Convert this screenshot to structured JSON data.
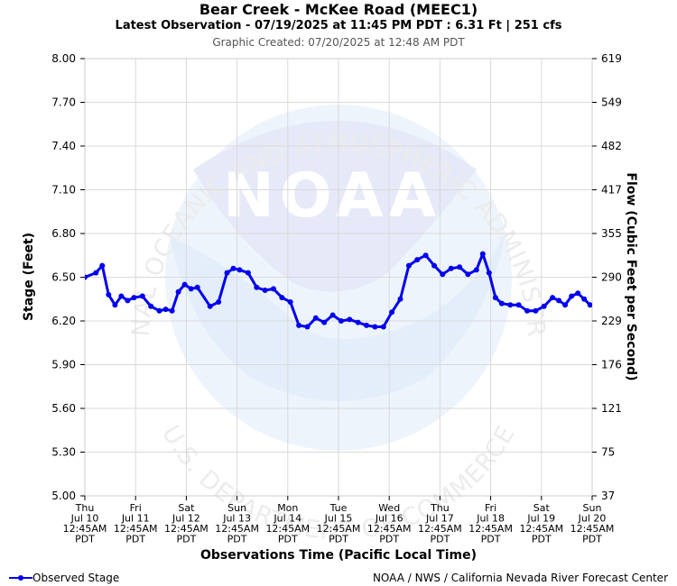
{
  "header": {
    "title": "Bear Creek - McKee Road (MEEC1)",
    "latest": "Latest Observation - 07/19/2025 at 11:45 PM PDT : 6.31 Ft | 251 cfs",
    "created": "Graphic Created: 07/20/2025 at 12:48 AM PDT"
  },
  "watermark": {
    "logo_text": "NOAA",
    "ring_top": "NATIONAL OCEANIC AND ATMOSPHERIC ADMINISTRATION",
    "ring_bottom": "U.S. DEPARTMENT OF COMMERCE"
  },
  "footer": {
    "legend_label": "Observed Stage",
    "credit": "NOAA / NWS / California Nevada River Forecast Center"
  },
  "colors": {
    "series": "#0000ee",
    "grid": "#d9d9d9",
    "watermark_blue": "#e9ecfa",
    "watermark_light": "#eef4fc"
  },
  "chart_data": {
    "type": "line",
    "ylabel": "Stage (Feet)",
    "y2label": "Flow (Cubic Feet per Second)",
    "xlabel": "Observations Time (Pacific Local Time)",
    "ylim": [
      5.0,
      8.0
    ],
    "yticks": [
      "8.00",
      "7.70",
      "7.40",
      "7.10",
      "6.80",
      "6.50",
      "6.20",
      "5.90",
      "5.60",
      "5.30",
      "5.00"
    ],
    "y2ticks": [
      "619",
      "549",
      "482",
      "417",
      "355",
      "290",
      "229",
      "176",
      "121",
      "75",
      "37"
    ],
    "xticks": [
      [
        "Thu",
        "Jul 10",
        "12:45AM",
        "PDT"
      ],
      [
        "Fri",
        "Jul 11",
        "12:45AM",
        "PDT"
      ],
      [
        "Sat",
        "Jul 12",
        "12:45AM",
        "PDT"
      ],
      [
        "Sun",
        "Jul 13",
        "12:45AM",
        "PDT"
      ],
      [
        "Mon",
        "Jul 14",
        "12:45AM",
        "PDT"
      ],
      [
        "Tue",
        "Jul 15",
        "12:45AM",
        "PDT"
      ],
      [
        "Wed",
        "Jul 16",
        "12:45AM",
        "PDT"
      ],
      [
        "Thu",
        "Jul 17",
        "12:45AM",
        "PDT"
      ],
      [
        "Fri",
        "Jul 18",
        "12:45AM",
        "PDT"
      ],
      [
        "Sat",
        "Jul 19",
        "12:45AM",
        "PDT"
      ],
      [
        "Sun",
        "Jul 20",
        "12:45AM",
        "PDT"
      ]
    ],
    "grid": true,
    "series": [
      {
        "name": "Observed Stage",
        "x": [
          "2025-07-10 00:45",
          "2025-07-10 06:00",
          "2025-07-10 09:00",
          "2025-07-10 12:00",
          "2025-07-10 15:00",
          "2025-07-10 18:00",
          "2025-07-10 21:00",
          "2025-07-11 00:00",
          "2025-07-11 04:00",
          "2025-07-11 08:00",
          "2025-07-11 12:00",
          "2025-07-11 15:00",
          "2025-07-11 18:00",
          "2025-07-11 21:00",
          "2025-07-12 00:00",
          "2025-07-12 03:00",
          "2025-07-12 06:00",
          "2025-07-12 12:00",
          "2025-07-12 16:00",
          "2025-07-12 20:00",
          "2025-07-12 23:00",
          "2025-07-13 02:00",
          "2025-07-13 06:00",
          "2025-07-13 10:00",
          "2025-07-13 14:00",
          "2025-07-13 18:00",
          "2025-07-13 22:00",
          "2025-07-14 02:00",
          "2025-07-14 06:00",
          "2025-07-14 10:00",
          "2025-07-14 14:00",
          "2025-07-14 18:00",
          "2025-07-14 22:00",
          "2025-07-15 02:00",
          "2025-07-15 06:00",
          "2025-07-15 10:00",
          "2025-07-15 14:00",
          "2025-07-15 18:00",
          "2025-07-15 22:00",
          "2025-07-16 02:00",
          "2025-07-16 06:00",
          "2025-07-16 10:00",
          "2025-07-16 14:00",
          "2025-07-16 18:00",
          "2025-07-16 22:00",
          "2025-07-17 02:00",
          "2025-07-17 06:00",
          "2025-07-17 10:00",
          "2025-07-17 14:00",
          "2025-07-17 18:00",
          "2025-07-17 21:00",
          "2025-07-18 00:00",
          "2025-07-18 03:00",
          "2025-07-18 06:00",
          "2025-07-18 10:00",
          "2025-07-18 14:00",
          "2025-07-18 18:00",
          "2025-07-18 22:00",
          "2025-07-19 02:00",
          "2025-07-19 06:00",
          "2025-07-19 09:00",
          "2025-07-19 12:00",
          "2025-07-19 15:00",
          "2025-07-19 18:00",
          "2025-07-19 21:00",
          "2025-07-19 23:45"
        ],
        "values": [
          6.5,
          6.53,
          6.58,
          6.38,
          6.31,
          6.37,
          6.34,
          6.36,
          6.37,
          6.3,
          6.27,
          6.28,
          6.27,
          6.4,
          6.45,
          6.42,
          6.43,
          6.3,
          6.33,
          6.53,
          6.56,
          6.55,
          6.53,
          6.43,
          6.41,
          6.42,
          6.36,
          6.33,
          6.17,
          6.16,
          6.22,
          6.19,
          6.24,
          6.2,
          6.21,
          6.19,
          6.17,
          6.16,
          6.16,
          6.26,
          6.35,
          6.58,
          6.62,
          6.65,
          6.58,
          6.52,
          6.56,
          6.57,
          6.52,
          6.55,
          6.66,
          6.53,
          6.36,
          6.32,
          6.31,
          6.31,
          6.27,
          6.27,
          6.3,
          6.36,
          6.34,
          6.31,
          6.37,
          6.39,
          6.35,
          6.31
        ]
      }
    ]
  }
}
